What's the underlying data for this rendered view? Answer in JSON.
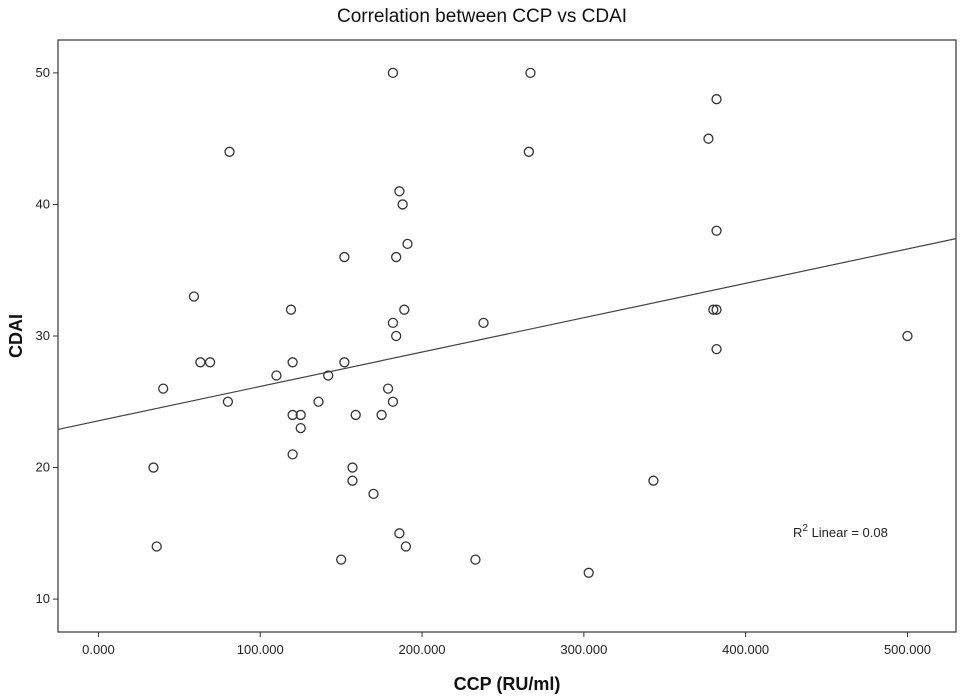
{
  "chart_data": {
    "type": "scatter",
    "title": "Correlation  between  CCP  vs  CDAI",
    "xlabel": "CCP (RU/ml)",
    "ylabel": "CDAI",
    "xlim": [
      -25,
      530
    ],
    "ylim": [
      7.5,
      52.5
    ],
    "x_ticks": [
      0,
      100,
      200,
      300,
      400,
      500
    ],
    "x_tick_labels": [
      "0.000",
      "100.000",
      "200.000",
      "300.000",
      "400.000",
      "500.000"
    ],
    "y_ticks": [
      10,
      20,
      30,
      40,
      50
    ],
    "y_tick_labels": [
      "10",
      "20",
      "30",
      "40",
      "50"
    ],
    "grid": false,
    "points": [
      {
        "x": 34,
        "y": 20
      },
      {
        "x": 36,
        "y": 14
      },
      {
        "x": 40,
        "y": 26
      },
      {
        "x": 59,
        "y": 33
      },
      {
        "x": 63,
        "y": 28
      },
      {
        "x": 69,
        "y": 28
      },
      {
        "x": 80,
        "y": 25
      },
      {
        "x": 81,
        "y": 44
      },
      {
        "x": 110,
        "y": 27
      },
      {
        "x": 119,
        "y": 32
      },
      {
        "x": 120,
        "y": 28
      },
      {
        "x": 120,
        "y": 24
      },
      {
        "x": 120,
        "y": 21
      },
      {
        "x": 125,
        "y": 24
      },
      {
        "x": 125,
        "y": 23
      },
      {
        "x": 136,
        "y": 25
      },
      {
        "x": 142,
        "y": 27
      },
      {
        "x": 150,
        "y": 13
      },
      {
        "x": 152,
        "y": 36
      },
      {
        "x": 152,
        "y": 28
      },
      {
        "x": 157,
        "y": 20
      },
      {
        "x": 157,
        "y": 19
      },
      {
        "x": 159,
        "y": 24
      },
      {
        "x": 170,
        "y": 18
      },
      {
        "x": 175,
        "y": 24
      },
      {
        "x": 179,
        "y": 26
      },
      {
        "x": 182,
        "y": 50
      },
      {
        "x": 182,
        "y": 31
      },
      {
        "x": 182,
        "y": 25
      },
      {
        "x": 184,
        "y": 36
      },
      {
        "x": 184,
        "y": 30
      },
      {
        "x": 186,
        "y": 41
      },
      {
        "x": 186,
        "y": 15
      },
      {
        "x": 188,
        "y": 40
      },
      {
        "x": 189,
        "y": 32
      },
      {
        "x": 190,
        "y": 14
      },
      {
        "x": 191,
        "y": 37
      },
      {
        "x": 233,
        "y": 13
      },
      {
        "x": 238,
        "y": 31
      },
      {
        "x": 266,
        "y": 44
      },
      {
        "x": 267,
        "y": 50
      },
      {
        "x": 303,
        "y": 12
      },
      {
        "x": 343,
        "y": 19
      },
      {
        "x": 377,
        "y": 45
      },
      {
        "x": 380,
        "y": 32
      },
      {
        "x": 382,
        "y": 48
      },
      {
        "x": 382,
        "y": 38
      },
      {
        "x": 382,
        "y": 32
      },
      {
        "x": 382,
        "y": 29
      },
      {
        "x": 500,
        "y": 30
      }
    ],
    "fit_line": {
      "type": "linear",
      "x": [
        -25,
        530
      ],
      "y": [
        22.9,
        37.4
      ]
    },
    "annotations": [
      {
        "text_base": "R",
        "text_sup": "2",
        "text_rest": " Linear = 0.08",
        "position": "bottom-right"
      }
    ],
    "colors": {
      "point_stroke": "#333333",
      "axis": "#333333",
      "line": "#444444",
      "background": "#ffffff"
    }
  }
}
